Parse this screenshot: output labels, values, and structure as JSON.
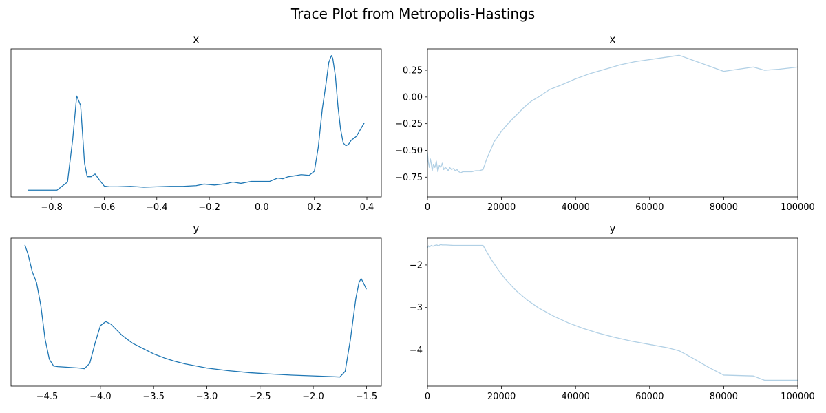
{
  "figure": {
    "suptitle": "Trace Plot from Metropolis-Hastings",
    "line_color": "#1f77b4",
    "trace_alpha": 0.35
  },
  "chart_data": [
    {
      "id": "density-x",
      "type": "line",
      "title": "x",
      "xlabel": "",
      "ylabel": "",
      "xlim": [
        -0.955,
        0.455
      ],
      "ylim": [
        -0.05,
        1.05
      ],
      "xticks": [
        -0.8,
        -0.6,
        -0.4,
        -0.2,
        0.0,
        0.2,
        0.4
      ],
      "xtick_labels": [
        "−0.8",
        "−0.6",
        "−0.4",
        "−0.2",
        "0.0",
        "0.2",
        "0.4"
      ],
      "show_yticks": false,
      "grid": false,
      "x": [
        -0.89,
        -0.78,
        -0.74,
        -0.72,
        -0.705,
        -0.69,
        -0.675,
        -0.665,
        -0.65,
        -0.635,
        -0.62,
        -0.6,
        -0.58,
        -0.55,
        -0.5,
        -0.45,
        -0.4,
        -0.35,
        -0.3,
        -0.25,
        -0.22,
        -0.18,
        -0.14,
        -0.11,
        -0.08,
        -0.04,
        -0.01,
        0.03,
        0.06,
        0.08,
        0.1,
        0.12,
        0.15,
        0.18,
        0.2,
        0.215,
        0.23,
        0.245,
        0.255,
        0.265,
        0.27,
        0.28,
        0.29,
        0.3,
        0.31,
        0.32,
        0.33,
        0.34,
        0.36,
        0.375,
        0.39
      ],
      "y": [
        0.0,
        0.0,
        0.06,
        0.38,
        0.7,
        0.63,
        0.2,
        0.1,
        0.1,
        0.12,
        0.08,
        0.03,
        0.025,
        0.025,
        0.028,
        0.022,
        0.025,
        0.028,
        0.028,
        0.033,
        0.045,
        0.038,
        0.047,
        0.06,
        0.05,
        0.065,
        0.065,
        0.065,
        0.09,
        0.085,
        0.1,
        0.105,
        0.115,
        0.11,
        0.14,
        0.32,
        0.6,
        0.8,
        0.95,
        1.0,
        0.98,
        0.85,
        0.62,
        0.45,
        0.35,
        0.33,
        0.34,
        0.37,
        0.4,
        0.45,
        0.5
      ]
    },
    {
      "id": "trace-x",
      "type": "line",
      "title": "x",
      "xlabel": "",
      "ylabel": "",
      "xlim": [
        0,
        100000
      ],
      "ylim": [
        -0.935,
        0.45
      ],
      "xticks": [
        0,
        20000,
        40000,
        60000,
        80000,
        100000
      ],
      "xtick_labels": [
        "0",
        "20000",
        "40000",
        "60000",
        "80000",
        "100000"
      ],
      "yticks": [
        -0.75,
        -0.5,
        -0.25,
        0.0,
        0.25
      ],
      "ytick_labels": [
        "−0.75",
        "−0.50",
        "−0.25",
        "0.00",
        "0.25"
      ],
      "grid": false,
      "x": [
        0,
        200,
        500,
        800,
        1000,
        1300,
        1600,
        2000,
        2400,
        2800,
        3200,
        3600,
        4000,
        4400,
        4800,
        5200,
        5600,
        6000,
        6500,
        7000,
        7500,
        8000,
        8500,
        9000,
        9500,
        10000,
        11000,
        12000,
        13000,
        14000,
        15000,
        16000,
        17000,
        18000,
        20000,
        22000,
        24000,
        26000,
        28000,
        30000,
        33000,
        36000,
        40000,
        44000,
        48000,
        52000,
        56000,
        60000,
        64000,
        68000,
        72000,
        76000,
        80000,
        84000,
        88000,
        91000,
        95000,
        100000
      ],
      "y": [
        -0.52,
        -0.6,
        -0.66,
        -0.58,
        -0.62,
        -0.69,
        -0.63,
        -0.66,
        -0.6,
        -0.7,
        -0.64,
        -0.66,
        -0.62,
        -0.68,
        -0.66,
        -0.67,
        -0.69,
        -0.66,
        -0.68,
        -0.67,
        -0.69,
        -0.68,
        -0.7,
        -0.71,
        -0.7,
        -0.7,
        -0.7,
        -0.7,
        -0.69,
        -0.69,
        -0.68,
        -0.58,
        -0.5,
        -0.42,
        -0.32,
        -0.24,
        -0.17,
        -0.1,
        -0.04,
        0.0,
        0.07,
        0.11,
        0.17,
        0.22,
        0.26,
        0.3,
        0.33,
        0.35,
        0.37,
        0.39,
        0.34,
        0.29,
        0.24,
        0.26,
        0.28,
        0.25,
        0.26,
        0.28
      ]
    },
    {
      "id": "density-y",
      "type": "line",
      "title": "y",
      "xlabel": "",
      "ylabel": "",
      "xlim": [
        -4.84,
        -1.36
      ],
      "ylim": [
        -0.05,
        1.05
      ],
      "xticks": [
        -4.5,
        -4.0,
        -3.5,
        -3.0,
        -2.5,
        -2.0,
        -1.5
      ],
      "xtick_labels": [
        "−4.5",
        "−4.0",
        "−3.5",
        "−3.0",
        "−2.5",
        "−2.0",
        "−1.5"
      ],
      "show_yticks": false,
      "grid": false,
      "x": [
        -4.71,
        -4.68,
        -4.64,
        -4.6,
        -4.56,
        -4.52,
        -4.48,
        -4.44,
        -4.4,
        -4.3,
        -4.2,
        -4.15,
        -4.1,
        -4.05,
        -4.0,
        -3.95,
        -3.9,
        -3.85,
        -3.8,
        -3.75,
        -3.7,
        -3.6,
        -3.5,
        -3.4,
        -3.3,
        -3.2,
        -3.0,
        -2.8,
        -2.6,
        -2.4,
        -2.2,
        -2.0,
        -1.8,
        -1.75,
        -1.7,
        -1.65,
        -1.6,
        -1.57,
        -1.55,
        -1.53,
        -1.5
      ],
      "y": [
        1.0,
        0.93,
        0.8,
        0.72,
        0.55,
        0.3,
        0.15,
        0.1,
        0.095,
        0.09,
        0.085,
        0.08,
        0.12,
        0.27,
        0.4,
        0.43,
        0.41,
        0.37,
        0.33,
        0.3,
        0.27,
        0.23,
        0.19,
        0.16,
        0.135,
        0.115,
        0.085,
        0.065,
        0.05,
        0.04,
        0.032,
        0.026,
        0.02,
        0.018,
        0.06,
        0.3,
        0.6,
        0.72,
        0.75,
        0.72,
        0.67
      ]
    },
    {
      "id": "trace-y",
      "type": "line",
      "title": "y",
      "xlabel": "",
      "ylabel": "",
      "xlim": [
        0,
        100000
      ],
      "ylim": [
        -4.85,
        -1.37
      ],
      "xticks": [
        0,
        20000,
        40000,
        60000,
        80000,
        100000
      ],
      "xtick_labels": [
        "0",
        "20000",
        "40000",
        "60000",
        "80000",
        "100000"
      ],
      "yticks": [
        -4,
        -3,
        -2
      ],
      "ytick_labels": [
        "−4",
        "−3",
        "−2"
      ],
      "grid": false,
      "x": [
        0,
        300,
        600,
        1000,
        1500,
        2000,
        2500,
        3000,
        3500,
        4000,
        5000,
        7000,
        10000,
        13000,
        15000,
        17000,
        19000,
        21000,
        24000,
        27000,
        30000,
        34000,
        38000,
        42000,
        46000,
        50000,
        55000,
        60000,
        65000,
        68000,
        72000,
        76000,
        80000,
        84000,
        88000,
        91000,
        95000,
        100000
      ],
      "y": [
        -1.6,
        -1.55,
        -1.58,
        -1.54,
        -1.56,
        -1.54,
        -1.53,
        -1.55,
        -1.52,
        -1.53,
        -1.53,
        -1.54,
        -1.54,
        -1.54,
        -1.54,
        -1.84,
        -2.1,
        -2.33,
        -2.61,
        -2.83,
        -3.01,
        -3.2,
        -3.36,
        -3.49,
        -3.6,
        -3.69,
        -3.79,
        -3.87,
        -3.95,
        -4.02,
        -4.21,
        -4.41,
        -4.59,
        -4.6,
        -4.61,
        -4.71,
        -4.71,
        -4.71
      ]
    }
  ]
}
